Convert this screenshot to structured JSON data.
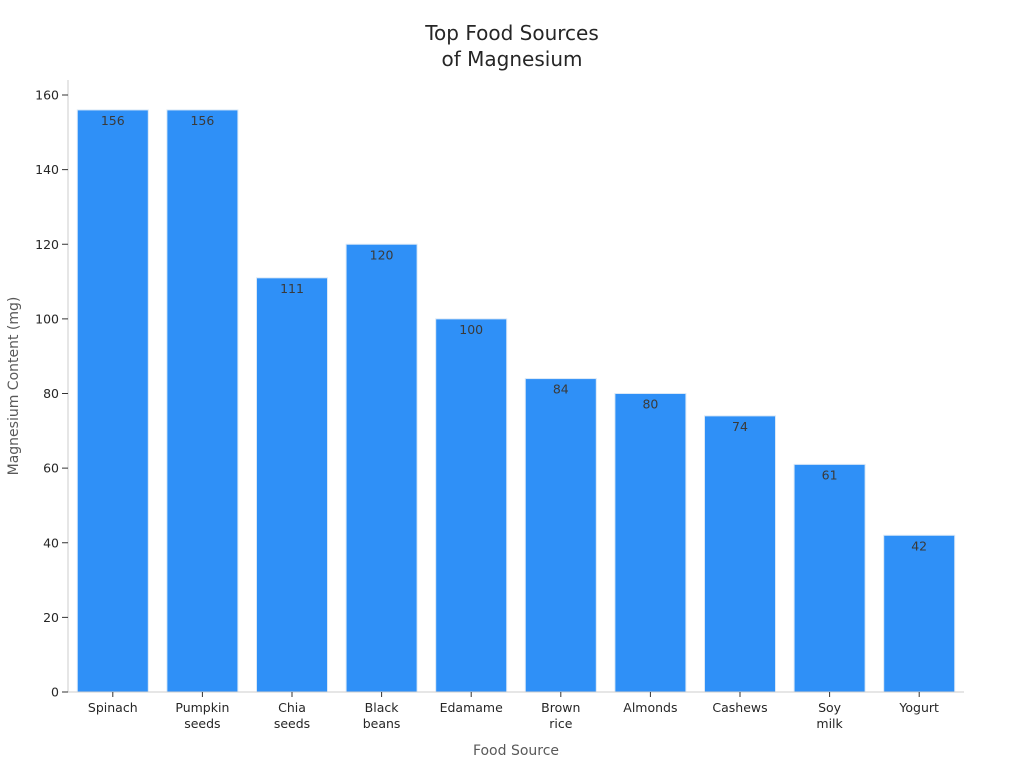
{
  "chart_data": {
    "type": "bar",
    "title": [
      "Top Food Sources",
      "of Magnesium"
    ],
    "xlabel": "Food Source",
    "ylabel": "Magnesium Content (mg)",
    "categories": [
      [
        "Spinach"
      ],
      [
        "Pumpkin",
        "seeds"
      ],
      [
        "Chia",
        "seeds"
      ],
      [
        "Black",
        "beans"
      ],
      [
        "Edamame"
      ],
      [
        "Brown",
        "rice"
      ],
      [
        "Almonds"
      ],
      [
        "Cashews"
      ],
      [
        "Soy",
        "milk"
      ],
      [
        "Yogurt"
      ]
    ],
    "values": [
      156,
      156,
      111,
      120,
      100,
      84,
      80,
      74,
      61,
      42
    ],
    "data_labels": [
      "156",
      "156",
      "111",
      "120",
      "100",
      "84",
      "80",
      "74",
      "61",
      "42"
    ],
    "ylim": [
      0,
      165
    ],
    "yticks": [
      0,
      20,
      40,
      60,
      80,
      100,
      120,
      140,
      160
    ],
    "bar_color": "#2f90f7",
    "grid": false,
    "legend": "none"
  }
}
